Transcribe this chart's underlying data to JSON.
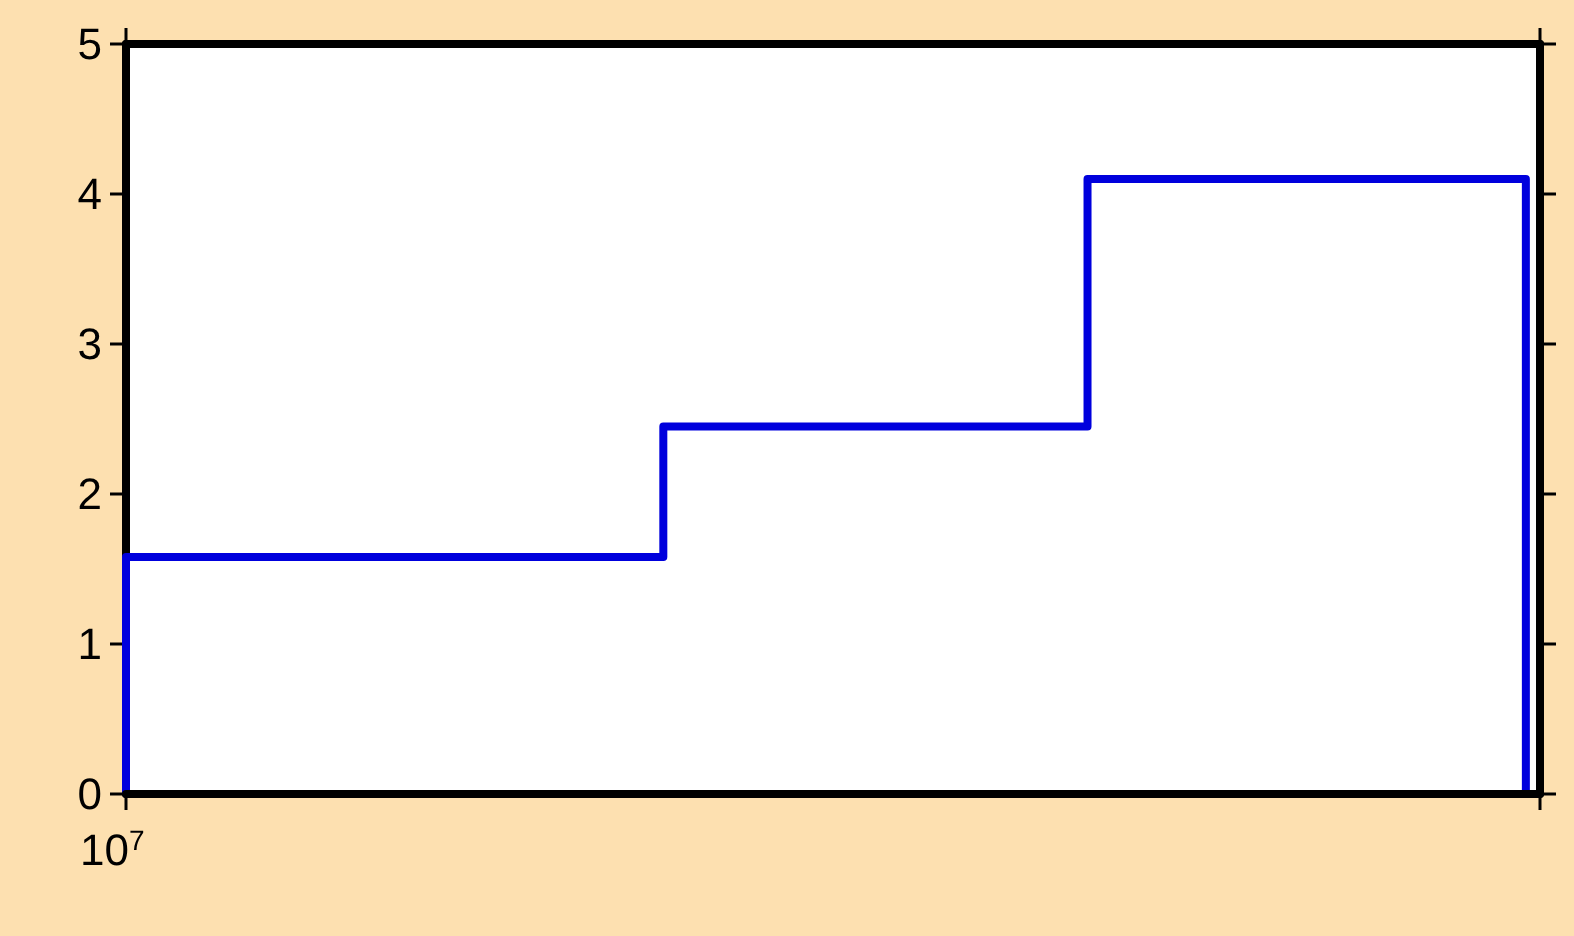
{
  "chart_data": {
    "type": "step",
    "categories": [
      null,
      null,
      null,
      null,
      null,
      null,
      null,
      null,
      null,
      null,
      null,
      null,
      null,
      null,
      null,
      null,
      null,
      null,
      null,
      null,
      null,
      null,
      null,
      null,
      null,
      null,
      null,
      null,
      null,
      null,
      null,
      null,
      null,
      null,
      null,
      null,
      null,
      null,
      null,
      null,
      null,
      null,
      null,
      null,
      null,
      null,
      null,
      null,
      null,
      null,
      null,
      null,
      null,
      null,
      null,
      null,
      null,
      null,
      null,
      null,
      null,
      null,
      null,
      null,
      null,
      null,
      null,
      null,
      null,
      null,
      null,
      null,
      null,
      null,
      null,
      null,
      null,
      null,
      null,
      null,
      null,
      null,
      null,
      null,
      null,
      null,
      null,
      null,
      null,
      null,
      null,
      null,
      null,
      null,
      null,
      null,
      null,
      null,
      null,
      null,
      null
    ],
    "series": [
      {
        "color": "#0000dd",
        "values": [
          0,
          1.58,
          1.58,
          1.58,
          1.58,
          1.58,
          1.58,
          1.58,
          1.58,
          1.58,
          1.58,
          1.58,
          1.58,
          1.58,
          1.58,
          1.58,
          1.58,
          1.58,
          1.58,
          1.58,
          1.58,
          1.58,
          1.58,
          1.58,
          1.58,
          1.58,
          1.58,
          1.58,
          1.58,
          1.58,
          1.58,
          1.58,
          1.58,
          1.58,
          1.58,
          1.58,
          1.58,
          1.58,
          1.58,
          2.45,
          2.45,
          2.45,
          2.45,
          2.45,
          2.45,
          2.45,
          2.45,
          2.45,
          2.45,
          2.45,
          2.45,
          2.45,
          2.45,
          2.45,
          2.45,
          2.45,
          2.45,
          2.45,
          2.45,
          2.45,
          2.45,
          2.45,
          2.45,
          2.45,
          2.45,
          2.45,
          2.45,
          2.45,
          2.45,
          4.1,
          4.1,
          4.1,
          4.1,
          4.1,
          4.1,
          4.1,
          4.1,
          4.1,
          4.1,
          4.1,
          4.1,
          4.1,
          4.1,
          4.1,
          4.1,
          4.1,
          4.1,
          4.1,
          4.1,
          4.1,
          4.1,
          4.1,
          4.1,
          4.1,
          4.1,
          4.1,
          4.1,
          4.1,
          4.1,
          4.1,
          0
        ]
      }
    ],
    "ylim": [
      0,
      5
    ],
    "yticks": [
      0,
      1,
      2,
      3,
      4,
      5
    ],
    "annotations": [
      "10$^{7}$"
    ],
    "grid": false,
    "marker": "none",
    "line_style": "solid"
  }
}
